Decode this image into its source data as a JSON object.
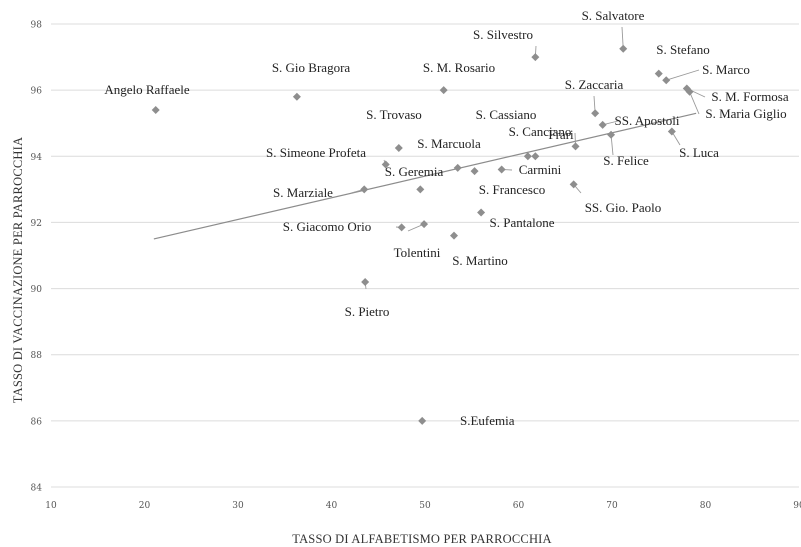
{
  "chart_data": {
    "type": "scatter",
    "title": "",
    "xlabel": "TASSO DI ALFABETISMO PER PARROCCHIA",
    "ylabel": "TASSO DI VACCINAZIONE PER PARROCCHIA",
    "xlim": [
      10,
      90
    ],
    "ylim": [
      84,
      98
    ],
    "xticks": [
      10,
      20,
      30,
      40,
      50,
      60,
      70,
      80,
      90
    ],
    "yticks": [
      84,
      86,
      88,
      90,
      92,
      94,
      96,
      98
    ],
    "grid": "horizontal",
    "marker": "diamond",
    "colors": {
      "marker": "#8e8e8e",
      "trendline": "#8c8c8c",
      "grid": "#dcdcdc"
    },
    "trendline": {
      "type": "linear",
      "x": [
        21,
        79
      ],
      "y": [
        91.5,
        95.3
      ]
    },
    "points": [
      {
        "label": "Angelo Raffaele",
        "x": 21.2,
        "y": 95.4
      },
      {
        "label": "S. Gio Bragora",
        "x": 36.3,
        "y": 95.8
      },
      {
        "label": "S. M. Rosario",
        "x": 52.0,
        "y": 96.0
      },
      {
        "label": "S. Silvestro",
        "x": 61.8,
        "y": 97.0
      },
      {
        "label": "S. Salvatore",
        "x": 71.2,
        "y": 97.25
      },
      {
        "label": "S. Stefano",
        "x": 75.0,
        "y": 96.5
      },
      {
        "label": "S. Marco",
        "x": 75.8,
        "y": 96.3
      },
      {
        "label": "S. M. Formosa",
        "x": 78.0,
        "y": 96.05
      },
      {
        "label": "S. Maria Giglio",
        "x": 78.3,
        "y": 95.95
      },
      {
        "label": "S. Zaccaria",
        "x": 68.2,
        "y": 95.3
      },
      {
        "label": "SS. Apostoli",
        "x": 69.0,
        "y": 94.95
      },
      {
        "label": "Frari",
        "x": 66.1,
        "y": 94.3
      },
      {
        "label": "S. Felice",
        "x": 69.9,
        "y": 94.65
      },
      {
        "label": "S. Luca",
        "x": 76.4,
        "y": 94.75
      },
      {
        "label": "S. Trovaso",
        "x": 47.2,
        "y": 94.25
      },
      {
        "label": "S. Cassiano",
        "x": 61.0,
        "y": 94.0
      },
      {
        "label": "S. Canciano",
        "x": 61.8,
        "y": 94.0
      },
      {
        "label": "S. Simeone Profeta",
        "x": 45.8,
        "y": 93.75
      },
      {
        "label": "S. Marcuola",
        "x": 53.5,
        "y": 93.65
      },
      {
        "label": "S. Geremia",
        "x": 49.5,
        "y": 93.0
      },
      {
        "label": "Carmini",
        "x": 58.2,
        "y": 93.6
      },
      {
        "label": "S. Francesco",
        "x": 55.3,
        "y": 93.55
      },
      {
        "label": "S. Marziale",
        "x": 43.5,
        "y": 93.0
      },
      {
        "label": "SS. Gio. Paolo",
        "x": 65.9,
        "y": 93.15
      },
      {
        "label": "S. Pantalone",
        "x": 56.0,
        "y": 92.3
      },
      {
        "label": "S. Giacomo Orio",
        "x": 47.5,
        "y": 91.85
      },
      {
        "label": "Tolentini",
        "x": 49.9,
        "y": 91.95
      },
      {
        "label": "S. Martino",
        "x": 53.1,
        "y": 91.6
      },
      {
        "label": "S. Pietro",
        "x": 43.6,
        "y": 90.2
      },
      {
        "label": "S.Eufemia",
        "x": 49.7,
        "y": 86.0
      }
    ]
  }
}
